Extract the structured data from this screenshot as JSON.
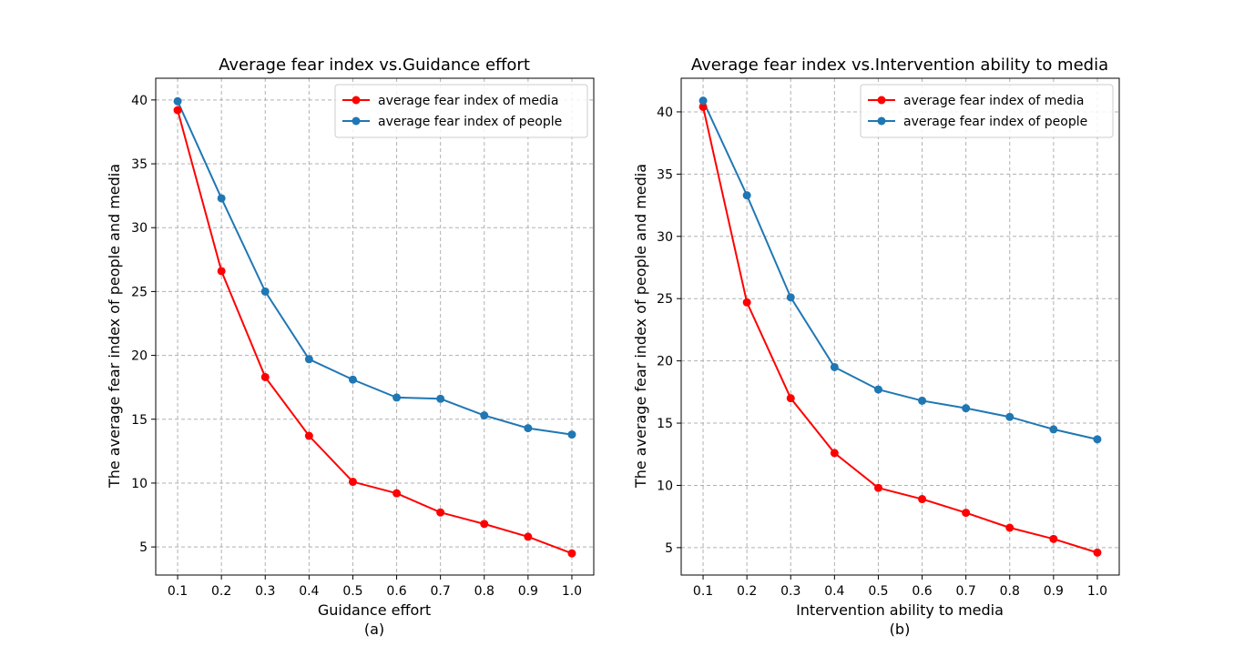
{
  "chart_data": [
    {
      "type": "line",
      "title": "Average fear index vs.Guidance effort",
      "xlabel": "Guidance effort",
      "ylabel": "The average fear index of people and media",
      "caption": "(a)",
      "x": [
        0.1,
        0.2,
        0.3,
        0.4,
        0.5,
        0.6,
        0.7,
        0.8,
        0.9,
        1.0
      ],
      "xticks": [
        "0.1",
        "0.2",
        "0.3",
        "0.4",
        "0.5",
        "0.6",
        "0.7",
        "0.8",
        "0.9",
        "1.0"
      ],
      "yticks": [
        5,
        10,
        15,
        20,
        25,
        30,
        35,
        40
      ],
      "ytick_labels": [
        "5",
        "10",
        "15",
        "20",
        "25",
        "30",
        "35",
        "40"
      ],
      "xlim": [
        0.05,
        1.05
      ],
      "ylim": [
        2.8,
        41.7
      ],
      "grid": true,
      "legend_position": "top-right",
      "series": [
        {
          "name": "average fear index of media",
          "color": "#ff0000",
          "values": [
            39.2,
            26.6,
            18.3,
            13.7,
            10.1,
            9.2,
            7.7,
            6.8,
            5.8,
            4.5
          ]
        },
        {
          "name": "average fear index of people",
          "color": "#1f77b4",
          "values": [
            39.9,
            32.3,
            25.0,
            19.7,
            18.1,
            16.7,
            16.6,
            15.3,
            14.3,
            13.8
          ]
        }
      ]
    },
    {
      "type": "line",
      "title": "Average fear index vs.Intervention ability to media",
      "xlabel": "Intervention ability to media",
      "ylabel": "The average fear index of people and media",
      "caption": "(b)",
      "x": [
        0.1,
        0.2,
        0.3,
        0.4,
        0.5,
        0.6,
        0.7,
        0.8,
        0.9,
        1.0
      ],
      "xticks": [
        "0.1",
        "0.2",
        "0.3",
        "0.4",
        "0.5",
        "0.6",
        "0.7",
        "0.8",
        "0.9",
        "1.0"
      ],
      "yticks": [
        5,
        10,
        15,
        20,
        25,
        30,
        35,
        40
      ],
      "ytick_labels": [
        "5",
        "10",
        "15",
        "20",
        "25",
        "30",
        "35",
        "40"
      ],
      "xlim": [
        0.05,
        1.05
      ],
      "ylim": [
        2.8,
        42.7
      ],
      "grid": true,
      "legend_position": "top-right",
      "series": [
        {
          "name": "average fear index of media",
          "color": "#ff0000",
          "values": [
            40.4,
            24.7,
            17.0,
            12.6,
            9.8,
            8.9,
            7.8,
            6.6,
            5.7,
            4.6
          ]
        },
        {
          "name": "average fear index of people",
          "color": "#1f77b4",
          "values": [
            40.9,
            33.3,
            25.1,
            19.5,
            17.7,
            16.8,
            16.2,
            15.5,
            14.5,
            13.7
          ]
        }
      ]
    }
  ]
}
